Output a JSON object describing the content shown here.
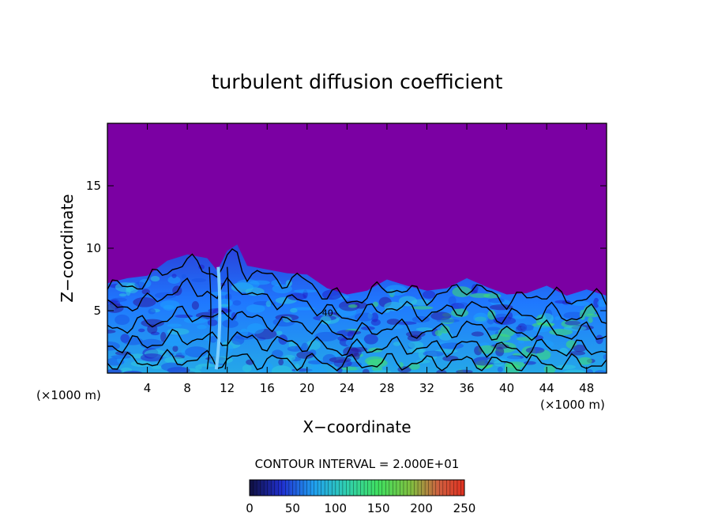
{
  "chart_data": {
    "type": "heatmap",
    "title": "turbulent diffusion coefficient",
    "xlabel": "X−coordinate",
    "ylabel": "Z−coordinate",
    "x_unit_left": "(×1000 m)",
    "x_unit_right": "(×1000 m)",
    "xlim": [
      0,
      50
    ],
    "ylim": [
      0,
      20
    ],
    "xticks": [
      4,
      8,
      12,
      16,
      20,
      24,
      28,
      32,
      36,
      40,
      44,
      48
    ],
    "yticks": [
      5,
      10,
      15
    ],
    "contour_interval_text": "CONTOUR INTERVAL = 2.000E+01",
    "contour_label": "40",
    "colorbar": {
      "min": 0,
      "max": 250,
      "ticks": [
        0,
        50,
        100,
        150,
        200,
        250
      ]
    },
    "background_value": 0,
    "boundary_layer_top": [
      [
        0,
        7.2
      ],
      [
        2,
        7.6
      ],
      [
        4,
        7.8
      ],
      [
        6,
        9.0
      ],
      [
        8,
        9.5
      ],
      [
        10,
        9.2
      ],
      [
        11,
        8.2
      ],
      [
        12,
        9.8
      ],
      [
        13,
        10.3
      ],
      [
        14,
        8.6
      ],
      [
        16,
        8.3
      ],
      [
        18,
        8.0
      ],
      [
        20,
        7.9
      ],
      [
        22,
        6.8
      ],
      [
        24,
        6.3
      ],
      [
        26,
        6.6
      ],
      [
        28,
        7.5
      ],
      [
        30,
        7.0
      ],
      [
        32,
        6.6
      ],
      [
        34,
        6.8
      ],
      [
        36,
        7.6
      ],
      [
        38,
        6.9
      ],
      [
        40,
        6.3
      ],
      [
        42,
        6.4
      ],
      [
        44,
        7.0
      ],
      [
        46,
        6.2
      ],
      [
        48,
        6.7
      ],
      [
        50,
        6.2
      ]
    ],
    "colors": {
      "background": "#7b00a3",
      "low": "#2020c8",
      "mid": "#1e90ff",
      "high": "#40e070",
      "contour": "#000000"
    }
  }
}
